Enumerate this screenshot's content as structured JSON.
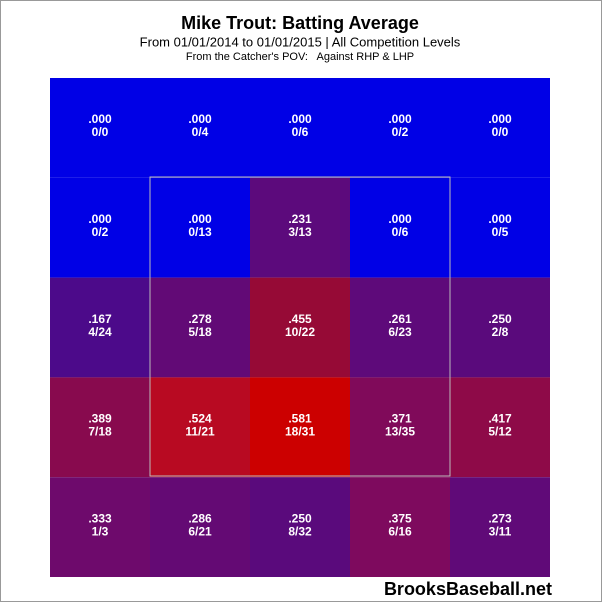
{
  "chart_data": {
    "type": "heatmap",
    "title": "Mike Trout: Batting Average",
    "subtitle": "From 01/01/2014 to 01/01/2015 | All Competition Levels",
    "note": "From the Catcher's POV:   Against RHP & LHP",
    "source": "BrooksBaseball.net",
    "values": [
      [
        0,
        0,
        0,
        0,
        0
      ],
      [
        0,
        0,
        0.231,
        0,
        0
      ],
      [
        0.167,
        0.278,
        0.455,
        0.261,
        0.25
      ],
      [
        0.389,
        0.524,
        0.581,
        0.371,
        0.417
      ],
      [
        0.333,
        0.286,
        0.25,
        0.375,
        0.273
      ]
    ],
    "value_labels": [
      [
        ".000",
        ".000",
        ".000",
        ".000",
        ".000"
      ],
      [
        ".000",
        ".000",
        ".231",
        ".000",
        ".000"
      ],
      [
        ".167",
        ".278",
        ".455",
        ".261",
        ".250"
      ],
      [
        ".389",
        ".524",
        ".581",
        ".371",
        ".417"
      ],
      [
        ".333",
        ".286",
        ".250",
        ".375",
        ".273"
      ]
    ],
    "counts": [
      [
        "0/0",
        "0/4",
        "0/6",
        "0/2",
        "0/0"
      ],
      [
        "0/2",
        "0/13",
        "3/13",
        "0/6",
        "0/5"
      ],
      [
        "4/24",
        "5/18",
        "10/22",
        "6/23",
        "2/8"
      ],
      [
        "7/18",
        "11/21",
        "18/31",
        "13/35",
        "5/12"
      ],
      [
        "1/3",
        "6/21",
        "8/32",
        "6/16",
        "3/11"
      ]
    ],
    "colors": [
      [
        "#0000e6",
        "#0000e6",
        "#0000e6",
        "#0000e6",
        "#0000e6"
      ],
      [
        "#0000e6",
        "#0000e6",
        "#5c0a7c",
        "#0000e6",
        "#0000e6"
      ],
      [
        "#4c0a8a",
        "#620a76",
        "#960a36",
        "#5e0a7a",
        "#5a0a7c"
      ],
      [
        "#880a4e",
        "#b80a22",
        "#cc0000",
        "#800a5a",
        "#8e0a48"
      ],
      [
        "#6e0a6c",
        "#640a74",
        "#5a0a7c",
        "#7e0a5e",
        "#600a78"
      ]
    ]
  }
}
